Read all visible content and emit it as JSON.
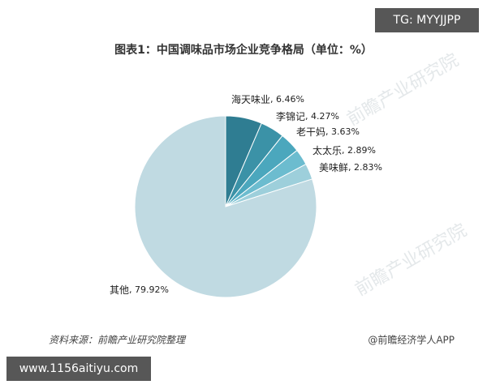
{
  "chart_data": {
    "type": "pie",
    "title": "图表1：中国调味品市场企业竞争格局（单位：%）",
    "categories": [
      "海天味业",
      "李锦记",
      "老干妈",
      "太太乐",
      "美味鲜",
      "其他"
    ],
    "values": [
      6.46,
      4.27,
      3.63,
      2.89,
      2.83,
      79.92
    ],
    "value_labels": [
      "6.46%",
      "4.27%",
      "3.63%",
      "2.89%",
      "2.83%",
      "79.92%"
    ],
    "colors": [
      "#2f7d92",
      "#3b92a7",
      "#4ba7bd",
      "#6cbccf",
      "#9dcfdb",
      "#c0dae2"
    ],
    "source": "资料来源：前瞻产业研究院整理",
    "credit": "@前瞻经济学人APP",
    "watermark": "前瞻产业研究院"
  },
  "badge": "TG: MYYJJPP",
  "site": "www.1156aitiyu.com"
}
